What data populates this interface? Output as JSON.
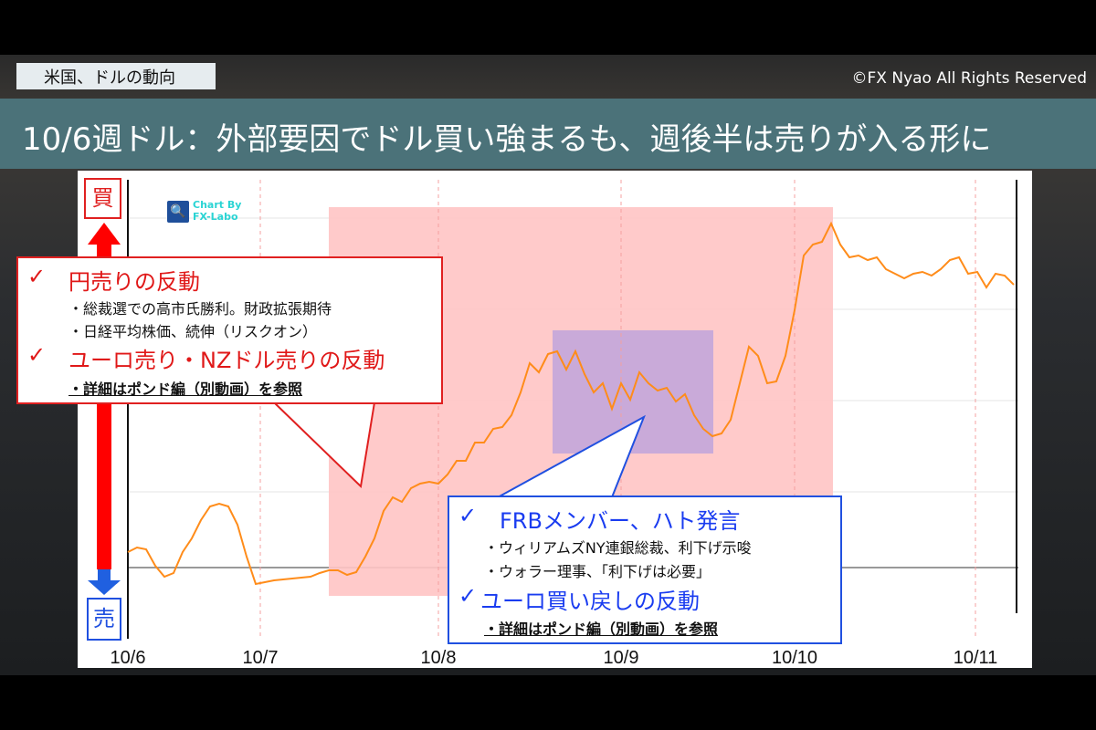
{
  "header": {
    "topic": "米国、ドルの動向",
    "copyright": "©FX Nyao All Rights Reserved",
    "title": "10/6週ドル：外部要因でドル買い強まるも、週後半は売りが入る形に"
  },
  "axis_labels": {
    "buy": "買",
    "sell": "売"
  },
  "logo": {
    "text_line1": "Chart By",
    "text_line2": "FX-Labo"
  },
  "callout_left": {
    "check": "✓",
    "heading1": "円売りの反動",
    "bullet1": "・総裁選での高市氏勝利。財政拡張期待",
    "bullet2": "・日経平均株価、続伸（リスクオン）",
    "heading2": "ユーロ売り・NZドル売りの反動",
    "reference": "・詳細はポンド編（別動画）を参照"
  },
  "callout_right": {
    "check": "✓",
    "heading1": "FRBメンバー、ハト発言",
    "bullet1": "・ウィリアムズNY連銀総裁、利下げ示唆",
    "bullet2": "・ウォラー理事、「利下げは必要」",
    "heading2": "ユーロ買い戻しの反動",
    "reference": "・詳細はポンド編（別動画）を参照"
  },
  "colors": {
    "line": "#ff8c1a",
    "highlight_pink": "#ffc4c4",
    "highlight_purple": "#c3a6da",
    "buy": "#e02020",
    "sell": "#2050e0",
    "title_bar": "#4b7279"
  },
  "chart_data": {
    "type": "line",
    "title": "",
    "xlabel": "",
    "ylabel": "",
    "x_ticks": [
      {
        "label": "10/6",
        "index": 0
      },
      {
        "label": "10/7",
        "index": 14.5
      },
      {
        "label": "10/8",
        "index": 34
      },
      {
        "label": "10/9",
        "index": 54
      },
      {
        "label": "10/10",
        "index": 73
      },
      {
        "label": "10/11",
        "index": 92.8
      }
    ],
    "ylim": [
      -0.78,
      4.25
    ],
    "grid": true,
    "series": [
      {
        "values": [
          0.17,
          0.22,
          0.2,
          0.02,
          -0.1,
          -0.06,
          0.17,
          0.32,
          0.52,
          0.67,
          0.7,
          0.67,
          0.47,
          0.12,
          -0.18,
          -0.16,
          -0.14,
          -0.13,
          -0.12,
          -0.11,
          -0.1,
          -0.06,
          -0.03,
          -0.03,
          -0.08,
          -0.05,
          0.12,
          0.32,
          0.62,
          0.77,
          0.72,
          0.87,
          0.92,
          0.94,
          0.92,
          1.02,
          1.17,
          1.17,
          1.37,
          1.37,
          1.52,
          1.54,
          1.67,
          1.92,
          2.24,
          2.14,
          2.34,
          2.37,
          2.17,
          2.37,
          2.12,
          1.92,
          2.02,
          1.74,
          2.02,
          1.84,
          2.14,
          2.02,
          1.94,
          1.97,
          1.82,
          1.9,
          1.67,
          1.52,
          1.44,
          1.47,
          1.62,
          2.02,
          2.42,
          2.32,
          2.02,
          2.04,
          2.32,
          2.82,
          3.42,
          3.54,
          3.57,
          3.77,
          3.54,
          3.4,
          3.42,
          3.37,
          3.4,
          3.27,
          3.22,
          3.17,
          3.22,
          3.24,
          3.2,
          3.27,
          3.37,
          3.4,
          3.22,
          3.24,
          3.07,
          3.22,
          3.2,
          3.1
        ]
      }
    ],
    "highlights": [
      {
        "color": "pink",
        "from_index": 22,
        "to_index": 77.2
      },
      {
        "color": "purple",
        "from_index": 46.5,
        "to_index": 64.1
      }
    ]
  }
}
